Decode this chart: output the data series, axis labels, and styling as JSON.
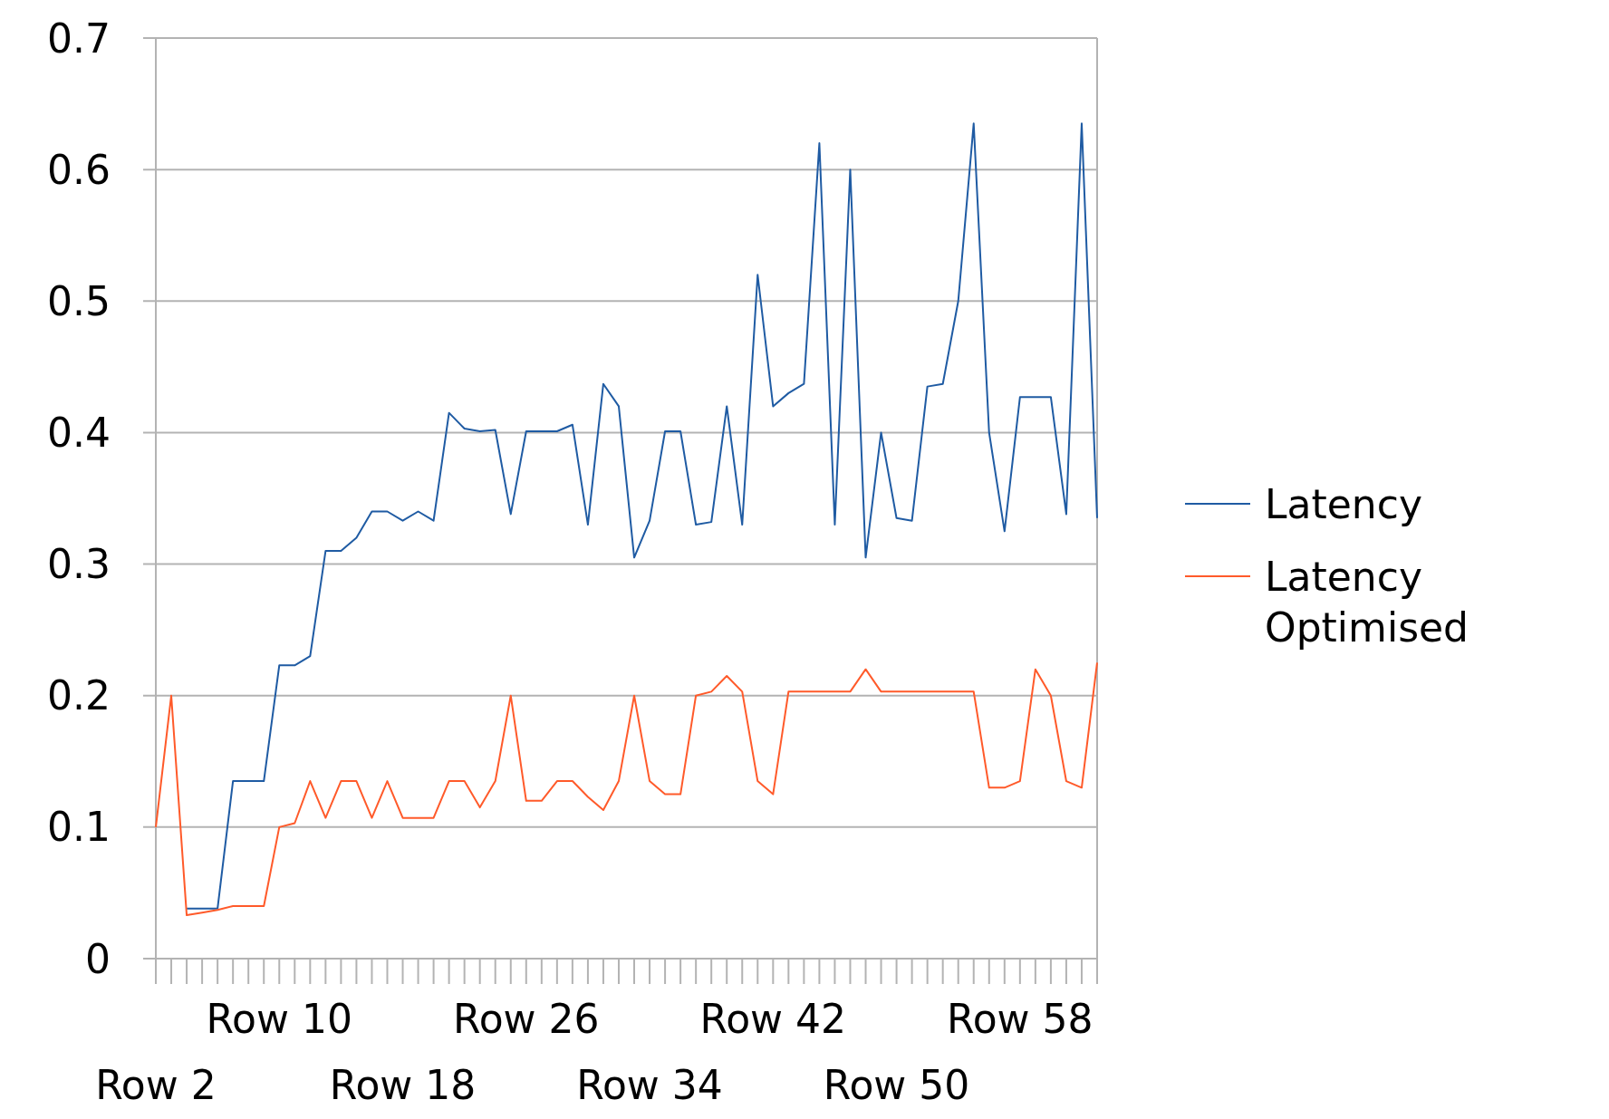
{
  "chart_data": {
    "type": "line",
    "categories": [
      "Row 2",
      null,
      null,
      null,
      null,
      null,
      null,
      null,
      "Row 10",
      null,
      null,
      null,
      null,
      null,
      null,
      null,
      "Row 18",
      null,
      null,
      null,
      null,
      null,
      null,
      null,
      "Row 26",
      null,
      null,
      null,
      null,
      null,
      null,
      null,
      "Row 34",
      null,
      null,
      null,
      null,
      null,
      null,
      null,
      "Row 42",
      null,
      null,
      null,
      null,
      null,
      null,
      null,
      "Row 50",
      null,
      null,
      null,
      null,
      null,
      null,
      null,
      "Row 58",
      null,
      null,
      null,
      null,
      null
    ],
    "series": [
      {
        "name": "Latency",
        "color": "#1f5ba3",
        "values": [
          null,
          null,
          0.038,
          0.038,
          0.038,
          0.135,
          0.135,
          0.135,
          0.223,
          0.223,
          0.23,
          0.31,
          0.31,
          0.32,
          0.34,
          0.34,
          0.333,
          0.34,
          0.333,
          0.415,
          0.403,
          0.401,
          0.402,
          0.338,
          0.401,
          0.401,
          0.401,
          0.406,
          0.33,
          0.437,
          0.42,
          0.305,
          0.333,
          0.401,
          0.401,
          0.33,
          0.332,
          0.42,
          0.33,
          0.52,
          0.42,
          0.43,
          0.437,
          0.62,
          0.33,
          0.6,
          0.305,
          0.4,
          0.335,
          0.333,
          0.435,
          0.437,
          0.5,
          0.635,
          0.4,
          0.325,
          0.427,
          0.427,
          0.427,
          0.338,
          0.635,
          0.335
        ]
      },
      {
        "name": "Latency Optimised",
        "color": "#ff5a2a",
        "values": [
          0.1,
          0.2,
          0.033,
          0.035,
          0.037,
          0.04,
          0.04,
          0.04,
          0.1,
          0.103,
          0.135,
          0.107,
          0.135,
          0.135,
          0.107,
          0.135,
          0.107,
          0.107,
          0.107,
          0.135,
          0.135,
          0.115,
          0.135,
          0.2,
          0.12,
          0.12,
          0.135,
          0.135,
          0.123,
          0.113,
          0.135,
          0.2,
          0.135,
          0.125,
          0.125,
          0.2,
          0.203,
          0.215,
          0.203,
          0.135,
          0.125,
          0.203,
          0.203,
          0.203,
          0.203,
          0.203,
          0.22,
          0.203,
          0.203,
          0.203,
          0.203,
          0.203,
          0.203,
          0.203,
          0.13,
          0.13,
          0.135,
          0.22,
          0.2,
          0.135,
          0.13,
          0.225
        ]
      }
    ],
    "ylim": [
      0,
      0.7
    ],
    "yticks": [
      0,
      0.1,
      0.2,
      0.3,
      0.4,
      0.5,
      0.6,
      0.7
    ],
    "grid": "y",
    "legend": "right"
  }
}
